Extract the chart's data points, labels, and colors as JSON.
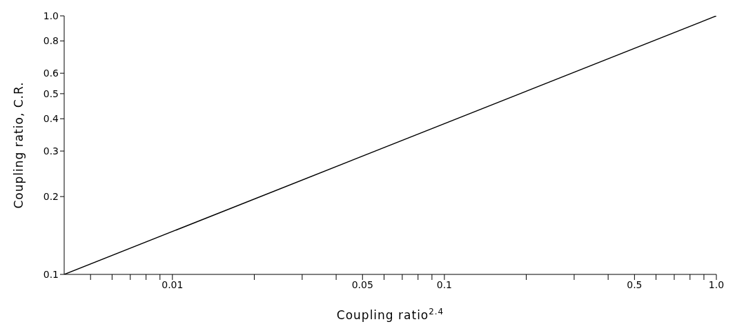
{
  "chart_data": {
    "type": "line",
    "xlabel": "Coupling ratio$^{2.4}$",
    "ylabel": "Coupling ratio, C.R.",
    "x": [
      0.004,
      1
    ],
    "values": [
      0.1,
      1.0
    ],
    "color": "#000000",
    "log": "xy",
    "grid": false,
    "legend": false,
    "marker": "none",
    "line_style": "solid",
    "xlim": [
      0.004,
      1
    ],
    "ylim": [
      0.1,
      1
    ],
    "xticks": [
      {
        "value": 0.005,
        "label": null
      },
      {
        "value": 0.006,
        "label": null
      },
      {
        "value": 0.007,
        "label": null
      },
      {
        "value": 0.008,
        "label": null
      },
      {
        "value": 0.009,
        "label": null
      },
      0.01,
      {
        "value": 0.02,
        "label": null
      },
      {
        "value": 0.03,
        "label": null
      },
      {
        "value": 0.04,
        "label": null
      },
      0.05,
      {
        "value": 0.06,
        "label": null
      },
      {
        "value": 0.07,
        "label": null
      },
      {
        "value": 0.08,
        "label": null
      },
      {
        "value": 0.09,
        "label": null
      },
      0.1,
      {
        "value": 0.2,
        "label": null
      },
      {
        "value": 0.3,
        "label": null
      },
      {
        "value": 0.4,
        "label": null
      },
      0.5,
      {
        "value": 0.6,
        "label": null
      },
      {
        "value": 0.7,
        "label": null
      },
      {
        "value": 0.8,
        "label": null
      },
      {
        "value": 0.9,
        "label": null
      },
      {
        "value": 1,
        "label": "1.0"
      }
    ],
    "yticks": [
      0.1,
      0.2,
      0.3,
      0.4,
      0.5,
      0.6,
      0.8,
      {
        "value": 1,
        "label": "1.0"
      }
    ]
  }
}
